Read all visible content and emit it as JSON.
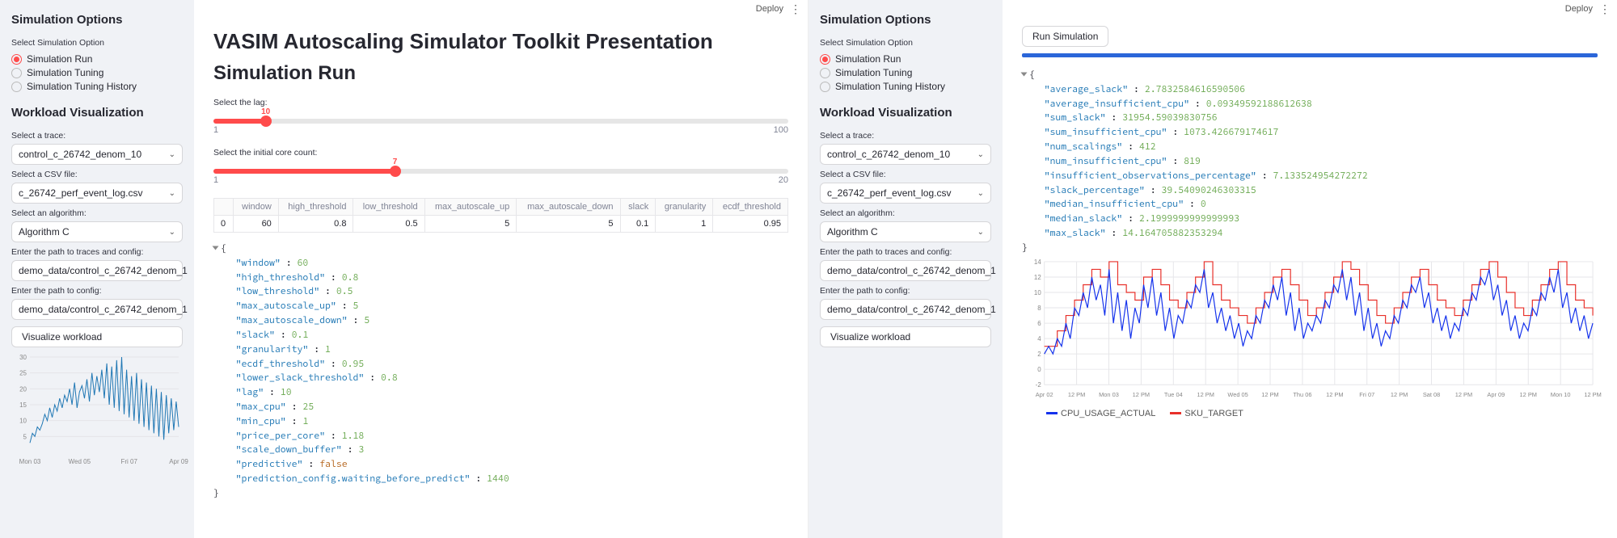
{
  "deploy_label": "Deploy",
  "sidebar": {
    "sim_options_title": "Simulation Options",
    "select_sim_label": "Select Simulation Option",
    "radios": [
      "Simulation Run",
      "Simulation Tuning",
      "Simulation Tuning History"
    ],
    "radio_selected": 0,
    "wv_title": "Workload Visualization",
    "trace_label": "Select a trace:",
    "trace_value": "control_c_26742_denom_10",
    "csv_label": "Select a CSV file:",
    "csv_value": "c_26742_perf_event_log.csv",
    "algo_label": "Select an algorithm:",
    "algo_value": "Algorithm C",
    "path1_label": "Enter the path to traces and config:",
    "path1_value": "demo_data/control_c_26742_denom_1",
    "path2_label": "Enter the path to config:",
    "path2_value": "demo_data/control_c_26742_denom_1",
    "visualize_btn": "Visualize workload",
    "mini_chart": {
      "type": "line",
      "y_ticks": [
        5,
        10,
        15,
        20,
        25,
        30
      ],
      "x_ticks": [
        "Mon 03",
        "Wed 05",
        "Fri 07",
        "Apr 09"
      ],
      "color": "#1f77b4",
      "grid_color": "#e4e4e8",
      "values": [
        3,
        6,
        5,
        8,
        7,
        9,
        12,
        10,
        14,
        11,
        15,
        13,
        17,
        14,
        18,
        16,
        20,
        15,
        22,
        14,
        19,
        21,
        17,
        23,
        16,
        25,
        18,
        24,
        19,
        26,
        17,
        28,
        15,
        27,
        14,
        29,
        13,
        30,
        12,
        26,
        11,
        24,
        10,
        25,
        9,
        23,
        8,
        22,
        7,
        21,
        6,
        20,
        5,
        19,
        4,
        18,
        6,
        17,
        7,
        16,
        8
      ]
    }
  },
  "left_main": {
    "h1": "VASIM Autoscaling Simulator Toolkit Presentation",
    "h2": "Simulation Run",
    "slider1": {
      "label": "Select the lag:",
      "min": 1,
      "max": 100,
      "value": 10
    },
    "slider2": {
      "label": "Select the initial core count:",
      "min": 1,
      "max": 20,
      "value": 7
    },
    "df": {
      "columns": [
        "",
        "window",
        "high_threshold",
        "low_threshold",
        "max_autoscale_up",
        "max_autoscale_down",
        "slack",
        "granularity",
        "ecdf_threshold"
      ],
      "row_index": "0",
      "row": [
        "60",
        "0.8",
        "0.5",
        "5",
        "5",
        "0.1",
        "1",
        "0.95"
      ]
    },
    "config_json": {
      "window": 60,
      "high_threshold": 0.8,
      "low_threshold": 0.5,
      "max_autoscale_up": 5,
      "max_autoscale_down": 5,
      "slack": 0.1,
      "granularity": 1,
      "ecdf_threshold": 0.95,
      "lower_slack_threshold": 0.8,
      "lag": 10,
      "max_cpu": 25,
      "min_cpu": 1,
      "price_per_core": 1.18,
      "scale_down_buffer": 3,
      "predictive": false,
      "prediction_config.waiting_before_predict": 1440
    }
  },
  "right_main": {
    "run_btn": "Run Simulation",
    "results": {
      "average_slack": 2.7832584616590506,
      "average_insufficient_cpu": 0.09349592188612638,
      "sum_slack": 31954.59039830756,
      "sum_insufficient_cpu": 1073.426679174617,
      "num_scalings": 412,
      "num_insufficient_cpu": 819,
      "insufficient_observations_percentage": 7.133524954272272,
      "slack_percentage": 39.54090246303315,
      "median_insufficient_cpu": 0,
      "median_slack": 2.1999999999999993,
      "max_slack": 14.164705882353294
    },
    "chart": {
      "type": "line",
      "ylim": [
        -2,
        14
      ],
      "y_ticks": [
        -2,
        0,
        2,
        4,
        6,
        8,
        10,
        12,
        14
      ],
      "x_ticks": [
        "Apr 02",
        "12 PM",
        "Mon 03",
        "12 PM",
        "Tue 04",
        "12 PM",
        "Wed 05",
        "12 PM",
        "Thu 06",
        "12 PM",
        "Fri 07",
        "12 PM",
        "Sat 08",
        "12 PM",
        "Apr 09",
        "12 PM",
        "Mon 10",
        "12 PM"
      ],
      "grid_color": "#e6e6e9",
      "series": [
        {
          "name": "CPU_USAGE_ACTUAL",
          "color": "#1432ec"
        },
        {
          "name": "SKU_TARGET",
          "color": "#e8302a"
        }
      ],
      "actual": [
        2,
        3,
        2,
        4,
        3,
        6,
        4,
        8,
        7,
        10,
        8,
        12,
        9,
        11,
        7,
        13,
        6,
        10,
        5,
        9,
        4,
        8,
        6,
        11,
        8,
        12,
        7,
        10,
        5,
        8,
        4,
        7,
        6,
        9,
        8,
        11,
        10,
        13,
        8,
        10,
        6,
        8,
        5,
        7,
        4,
        6,
        3,
        5,
        4,
        7,
        6,
        9,
        8,
        11,
        9,
        12,
        7,
        10,
        5,
        8,
        4,
        6,
        5,
        7,
        6,
        9,
        8,
        11,
        10,
        13,
        9,
        12,
        7,
        10,
        5,
        8,
        4,
        6,
        3,
        5,
        4,
        7,
        6,
        9,
        8,
        11,
        10,
        12,
        8,
        10,
        6,
        8,
        5,
        7,
        4,
        6,
        5,
        8,
        7,
        10,
        9,
        12,
        11,
        13,
        9,
        11,
        7,
        9,
        5,
        7,
        4,
        6,
        5,
        8,
        7,
        10,
        9,
        12,
        10,
        13,
        8,
        10,
        6,
        8,
        5,
        7,
        4,
        6
      ],
      "target": [
        3,
        3,
        3,
        5,
        5,
        7,
        7,
        9,
        9,
        11,
        11,
        13,
        13,
        12,
        12,
        14,
        14,
        11,
        11,
        10,
        10,
        9,
        9,
        12,
        12,
        13,
        13,
        11,
        11,
        9,
        9,
        8,
        8,
        10,
        10,
        12,
        12,
        14,
        14,
        11,
        11,
        9,
        9,
        8,
        8,
        7,
        7,
        6,
        6,
        8,
        8,
        10,
        10,
        12,
        12,
        13,
        13,
        11,
        11,
        9,
        9,
        7,
        7,
        8,
        8,
        10,
        10,
        12,
        12,
        14,
        14,
        13,
        13,
        11,
        11,
        9,
        9,
        7,
        7,
        6,
        6,
        8,
        8,
        10,
        10,
        12,
        12,
        13,
        13,
        11,
        11,
        9,
        9,
        8,
        8,
        7,
        7,
        9,
        9,
        11,
        11,
        13,
        13,
        14,
        14,
        12,
        12,
        10,
        10,
        8,
        8,
        7,
        7,
        9,
        9,
        11,
        11,
        13,
        13,
        14,
        14,
        11,
        11,
        9,
        9,
        8,
        8,
        7
      ]
    }
  }
}
